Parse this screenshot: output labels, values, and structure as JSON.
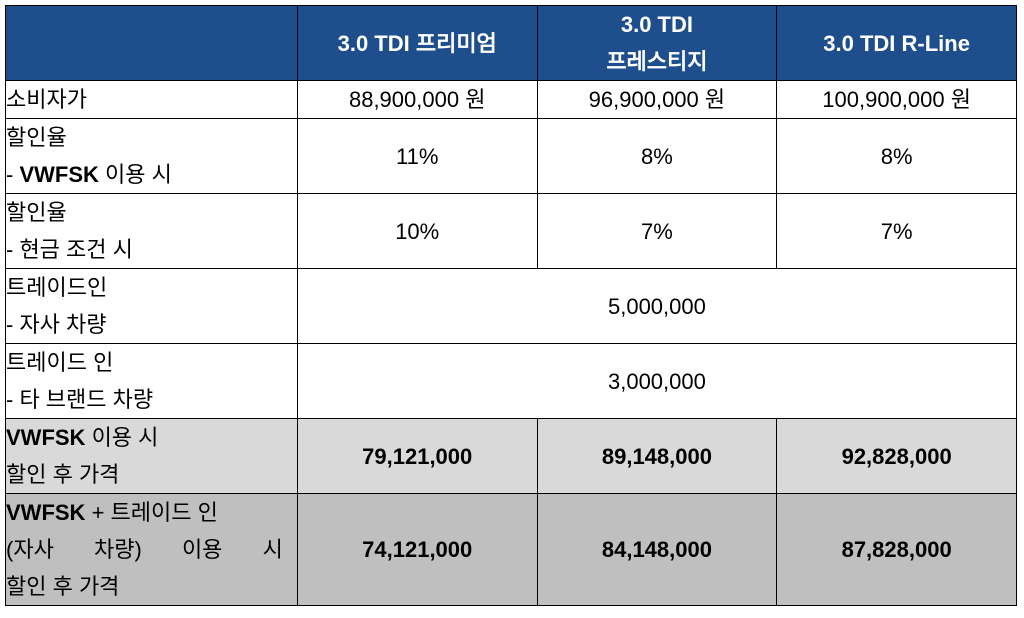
{
  "header": {
    "col1_line1": "3.0 TDI 프리미엄",
    "col2_line1": "3.0 TDI",
    "col2_line2": "프레스티지",
    "col3_line1": "3.0 TDI R-Line"
  },
  "rows": {
    "msrp": {
      "label": "소비자가",
      "values": [
        "88,900,000 원",
        "96,900,000 원",
        "100,900,000 원"
      ]
    },
    "discount_vwfsk": {
      "label_line1": "할인율",
      "label_line2_prefix": "- ",
      "label_line2_bold": "VWFSK",
      "label_line2_suffix": " 이용 시",
      "values": [
        "11%",
        "8%",
        "8%"
      ]
    },
    "discount_cash": {
      "label_line1": "할인율",
      "label_line2": "- 현금 조건 시",
      "values": [
        "10%",
        "7%",
        "7%"
      ]
    },
    "tradein_own": {
      "label_line1": "트레이드인",
      "label_line2": "- 자사 차량",
      "value": "5,000,000"
    },
    "tradein_other": {
      "label_line1": "트레이드 인",
      "label_line2": "- 타 브랜드 차량",
      "value": "3,000,000"
    },
    "price_vwfsk": {
      "label_line1_bold": "VWFSK",
      "label_line1_suffix": " 이용 시",
      "label_line2": "할인 후 가격",
      "values": [
        "79,121,000",
        "89,148,000",
        "92,828,000"
      ]
    },
    "price_vwfsk_tradein": {
      "label_line1_bold": "VWFSK",
      "label_line1_suffix": " + 트레이드 인",
      "label_line2_words": [
        "(자사",
        "차량)",
        "이용",
        "시"
      ],
      "label_line3": "할인 후 가격",
      "values": [
        "74,121,000",
        "84,148,000",
        "87,828,000"
      ]
    }
  },
  "colors": {
    "header_bg": "#1f4e8c",
    "header_text": "#ffffff",
    "light_gray": "#d9d9d9",
    "dark_gray": "#bfbfbf"
  }
}
